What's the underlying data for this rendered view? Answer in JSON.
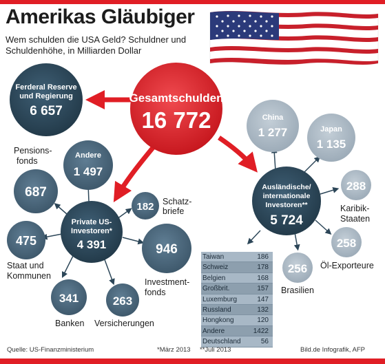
{
  "title": "Amerikas Gläubiger",
  "subtitle": "Wem schulden die USA Geld? Schuldner und Schuldenhöhe, in Milliarden Dollar",
  "colors": {
    "red": "#e01e25",
    "dark": "#2c4658",
    "mid": "#46637a",
    "light": "#a9b7c3",
    "text": "#1c1c1c"
  },
  "nodes": {
    "total": {
      "label": "Gesamtschulden",
      "value": "16 772"
    },
    "fed": {
      "label_line1": "Ferderal Reserve",
      "label_line2": "und Regierung",
      "value": "6 657"
    },
    "private": {
      "label_line1": "Private US-",
      "label_line2": "Investoren*",
      "value": "4 391"
    },
    "foreign": {
      "label_line1": "Ausländische/",
      "label_line2": "internationale",
      "label_line3": "Investoren**",
      "value": "5 724"
    },
    "andere": {
      "label": "Andere",
      "value": "1 497"
    },
    "pension": {
      "label_line1": "Pensions-",
      "label_line2": "fonds",
      "value": "687"
    },
    "staat": {
      "label_line1": "Staat und",
      "label_line2": "Kommunen",
      "value": "475"
    },
    "banken": {
      "label": "Banken",
      "value": "341"
    },
    "versicherungen": {
      "label": "Versicherungen",
      "value": "263"
    },
    "investment": {
      "label_line1": "Investment-",
      "label_line2": "fonds",
      "value": "946"
    },
    "schatz": {
      "label_line1": "Schatz-",
      "label_line2": "briefe",
      "value": "182"
    },
    "china": {
      "label": "China",
      "value": "1 277"
    },
    "japan": {
      "label": "Japan",
      "value": "1 135"
    },
    "karibik": {
      "label_line1": "Karibik-",
      "label_line2": "Staaten",
      "value": "288"
    },
    "oel": {
      "label": "Öl-Exporteure",
      "value": "258"
    },
    "brasilien": {
      "label": "Brasilien",
      "value": "256"
    }
  },
  "table": [
    {
      "country": "Taiwan",
      "value": "186"
    },
    {
      "country": "Schweiz",
      "value": "178"
    },
    {
      "country": "Belgien",
      "value": "168"
    },
    {
      "country": "Großbrit.",
      "value": "157"
    },
    {
      "country": "Luxemburg",
      "value": "147"
    },
    {
      "country": "Russland",
      "value": "132"
    },
    {
      "country": "Hongkong",
      "value": "120"
    },
    {
      "country": "Andere",
      "value": "1422"
    },
    {
      "country": "Deutschland",
      "value": "56"
    }
  ],
  "footer": {
    "source": "Quelle: US-Finanzministerium",
    "note1": "*März 2013",
    "note2": "**Juli 2013",
    "credit": "Bild.de Infografik, AFP"
  }
}
